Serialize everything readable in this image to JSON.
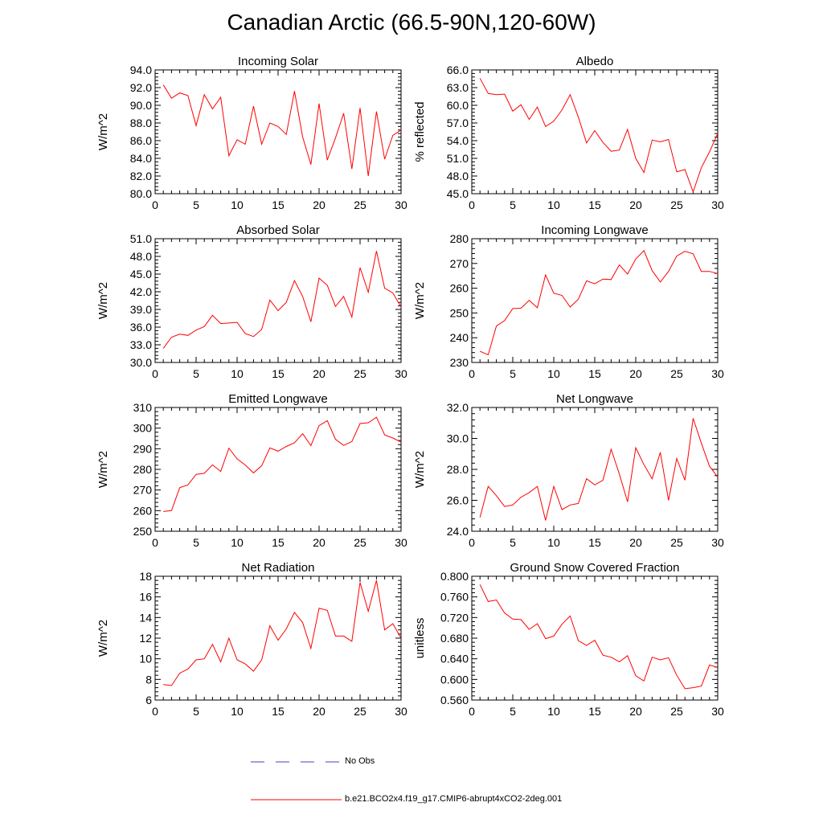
{
  "page": {
    "title": "Canadian Arctic (66.5-90N,120-60W)"
  },
  "legend": {
    "items": [
      {
        "label": "No Obs",
        "color": "#4040c0",
        "style": "dashed"
      },
      {
        "label": "b.e21.BCO2x4.f19_g17.CMIP6-abrupt4xCO2-2deg.001",
        "color": "#ff0000",
        "style": "solid"
      }
    ]
  },
  "chart_data": [
    {
      "type": "line",
      "title": "Incoming Solar",
      "ylabel": "W/m^2",
      "xlim": [
        0,
        30
      ],
      "ylim": [
        80,
        94
      ],
      "xticks": [
        0,
        5,
        10,
        15,
        20,
        25,
        30
      ],
      "xtick_labels": [
        "0",
        "5",
        "10",
        "15",
        "20",
        "25",
        "30"
      ],
      "yticks": [
        80,
        82,
        84,
        86,
        88,
        90,
        92,
        94
      ],
      "ytick_labels": [
        "80.0",
        "82.0",
        "84.0",
        "86.0",
        "88.0",
        "90.0",
        "92.0",
        "94.0"
      ],
      "series": [
        {
          "name": "b.e21.BCO2x4.f19_g17.CMIP6-abrupt4xCO2-2deg.001",
          "color": "#ff0000",
          "x": [
            1,
            2,
            3,
            4,
            5,
            6,
            7,
            8,
            9,
            10,
            11,
            12,
            13,
            14,
            15,
            16,
            17,
            18,
            19,
            20,
            21,
            22,
            23,
            24,
            25,
            26,
            27,
            28,
            29,
            30
          ],
          "values": [
            92.3,
            90.8,
            91.4,
            91.1,
            87.7,
            91.2,
            89.6,
            90.9,
            84.3,
            86.1,
            85.6,
            89.9,
            85.6,
            88.0,
            87.6,
            86.7,
            91.6,
            86.4,
            83.3,
            90.2,
            83.8,
            86.3,
            89.1,
            82.8,
            89.7,
            82.0,
            89.3,
            83.9,
            86.6,
            87.2
          ]
        }
      ]
    },
    {
      "type": "line",
      "title": "Albedo",
      "ylabel": "% reflected",
      "xlim": [
        0,
        30
      ],
      "ylim": [
        45,
        66
      ],
      "xticks": [
        0,
        5,
        10,
        15,
        20,
        25,
        30
      ],
      "xtick_labels": [
        "0",
        "5",
        "10",
        "15",
        "20",
        "25",
        "30"
      ],
      "yticks": [
        45,
        48,
        51,
        54,
        57,
        60,
        63,
        66
      ],
      "ytick_labels": [
        "45.0",
        "48.0",
        "51.0",
        "54.0",
        "57.0",
        "60.0",
        "63.0",
        "66.0"
      ],
      "series": [
        {
          "name": "b.e21.BCO2x4.f19_g17.CMIP6-abrupt4xCO2-2deg.001",
          "color": "#ff0000",
          "x": [
            1,
            2,
            3,
            4,
            5,
            6,
            7,
            8,
            9,
            10,
            11,
            12,
            13,
            14,
            15,
            16,
            17,
            18,
            19,
            20,
            21,
            22,
            23,
            24,
            25,
            26,
            27,
            28,
            29,
            30
          ],
          "values": [
            64.6,
            62.0,
            61.8,
            61.9,
            59.0,
            60.1,
            57.6,
            59.7,
            56.4,
            57.3,
            59.2,
            61.8,
            58.0,
            53.6,
            55.7,
            53.7,
            52.2,
            52.4,
            55.9,
            51.0,
            48.6,
            54.1,
            53.8,
            54.2,
            48.7,
            49.1,
            45.3,
            49.4,
            52.1,
            55.2
          ]
        }
      ]
    },
    {
      "type": "line",
      "title": "Absorbed Solar",
      "ylabel": "W/m^2",
      "xlim": [
        0,
        30
      ],
      "ylim": [
        30,
        51
      ],
      "xticks": [
        0,
        5,
        10,
        15,
        20,
        25,
        30
      ],
      "xtick_labels": [
        "0",
        "5",
        "10",
        "15",
        "20",
        "25",
        "30"
      ],
      "yticks": [
        30,
        33,
        36,
        39,
        42,
        45,
        48,
        51
      ],
      "ytick_labels": [
        "30.0",
        "33.0",
        "36.0",
        "39.0",
        "42.0",
        "45.0",
        "48.0",
        "51.0"
      ],
      "series": [
        {
          "name": "b.e21.BCO2x4.f19_g17.CMIP6-abrupt4xCO2-2deg.001",
          "color": "#ff0000",
          "x": [
            1,
            2,
            3,
            4,
            5,
            6,
            7,
            8,
            9,
            10,
            11,
            12,
            13,
            14,
            15,
            16,
            17,
            18,
            19,
            20,
            21,
            22,
            23,
            24,
            25,
            26,
            27,
            28,
            29,
            30
          ],
          "values": [
            32.4,
            34.3,
            34.8,
            34.6,
            35.5,
            36.1,
            38.0,
            36.6,
            36.7,
            36.8,
            34.9,
            34.4,
            35.6,
            40.6,
            38.8,
            40.2,
            43.9,
            41.2,
            36.9,
            44.3,
            43.1,
            39.5,
            41.2,
            37.7,
            46.1,
            41.9,
            48.9,
            42.6,
            41.8,
            39.4
          ]
        }
      ]
    },
    {
      "type": "line",
      "title": "Incoming Longwave",
      "ylabel": "W/m^2",
      "xlim": [
        0,
        30
      ],
      "ylim": [
        230,
        280
      ],
      "xticks": [
        0,
        5,
        10,
        15,
        20,
        25,
        30
      ],
      "xtick_labels": [
        "0",
        "5",
        "10",
        "15",
        "20",
        "25",
        "30"
      ],
      "yticks": [
        230,
        240,
        250,
        260,
        270,
        280
      ],
      "ytick_labels": [
        "230",
        "240",
        "250",
        "260",
        "270",
        "280"
      ],
      "series": [
        {
          "name": "b.e21.BCO2x4.f19_g17.CMIP6-abrupt4xCO2-2deg.001",
          "color": "#ff0000",
          "x": [
            1,
            2,
            3,
            4,
            5,
            6,
            7,
            8,
            9,
            10,
            11,
            12,
            13,
            14,
            15,
            16,
            17,
            18,
            19,
            20,
            21,
            22,
            23,
            24,
            25,
            26,
            27,
            28,
            29,
            30
          ],
          "values": [
            234.5,
            233.1,
            244.7,
            246.9,
            251.8,
            251.9,
            255.1,
            252.1,
            265.4,
            258.0,
            257.1,
            252.4,
            255.6,
            263.0,
            261.8,
            263.7,
            263.5,
            269.4,
            265.7,
            271.8,
            275.2,
            267.1,
            262.5,
            266.8,
            273.0,
            274.9,
            273.9,
            266.8,
            266.8,
            265.9
          ]
        }
      ]
    },
    {
      "type": "line",
      "title": "Emitted Longwave",
      "ylabel": "W/m^2",
      "xlim": [
        0,
        30
      ],
      "ylim": [
        250,
        310
      ],
      "xticks": [
        0,
        5,
        10,
        15,
        20,
        25,
        30
      ],
      "xtick_labels": [
        "0",
        "5",
        "10",
        "15",
        "20",
        "25",
        "30"
      ],
      "yticks": [
        250,
        260,
        270,
        280,
        290,
        300,
        310
      ],
      "ytick_labels": [
        "250",
        "260",
        "270",
        "280",
        "290",
        "300",
        "310"
      ],
      "series": [
        {
          "name": "b.e21.BCO2x4.f19_g17.CMIP6-abrupt4xCO2-2deg.001",
          "color": "#ff0000",
          "x": [
            1,
            2,
            3,
            4,
            5,
            6,
            7,
            8,
            9,
            10,
            11,
            12,
            13,
            14,
            15,
            16,
            17,
            18,
            19,
            20,
            21,
            22,
            23,
            24,
            25,
            26,
            27,
            28,
            29,
            30
          ],
          "values": [
            259.6,
            260.0,
            271.1,
            272.5,
            277.6,
            278.1,
            282.2,
            279.0,
            290.3,
            285.1,
            282.1,
            278.3,
            281.8,
            290.4,
            288.8,
            291.1,
            292.9,
            297.3,
            291.5,
            301.2,
            303.6,
            294.6,
            291.6,
            293.5,
            302.2,
            302.6,
            305.3,
            296.7,
            295.2,
            293.2
          ]
        }
      ]
    },
    {
      "type": "line",
      "title": "Net Longwave",
      "ylabel": "W/m^2",
      "xlim": [
        0,
        30
      ],
      "ylim": [
        24,
        32
      ],
      "xticks": [
        0,
        5,
        10,
        15,
        20,
        25,
        30
      ],
      "xtick_labels": [
        "0",
        "5",
        "10",
        "15",
        "20",
        "25",
        "30"
      ],
      "yticks": [
        24,
        26,
        28,
        30,
        32
      ],
      "ytick_labels": [
        "24.0",
        "26.0",
        "28.0",
        "30.0",
        "32.0"
      ],
      "series": [
        {
          "name": "b.e21.BCO2x4.f19_g17.CMIP6-abrupt4xCO2-2deg.001",
          "color": "#ff0000",
          "x": [
            1,
            2,
            3,
            4,
            5,
            6,
            7,
            8,
            9,
            10,
            11,
            12,
            13,
            14,
            15,
            16,
            17,
            18,
            19,
            20,
            21,
            22,
            23,
            24,
            25,
            26,
            27,
            28,
            29,
            30
          ],
          "values": [
            24.9,
            26.9,
            26.3,
            25.6,
            25.7,
            26.2,
            26.5,
            26.9,
            24.7,
            26.9,
            25.4,
            25.7,
            25.8,
            27.4,
            27.0,
            27.3,
            29.3,
            27.7,
            25.9,
            29.4,
            28.3,
            27.4,
            29.1,
            26.0,
            28.7,
            27.3,
            31.3,
            29.7,
            28.2,
            27.5
          ]
        }
      ]
    },
    {
      "type": "line",
      "title": "Net Radiation",
      "ylabel": "W/m^2",
      "xlim": [
        0,
        30
      ],
      "ylim": [
        6,
        18
      ],
      "xticks": [
        0,
        5,
        10,
        15,
        20,
        25,
        30
      ],
      "xtick_labels": [
        "0",
        "5",
        "10",
        "15",
        "20",
        "25",
        "30"
      ],
      "yticks": [
        6,
        8,
        10,
        12,
        14,
        16,
        18
      ],
      "ytick_labels": [
        "6",
        "8",
        "10",
        "12",
        "14",
        "16",
        "18"
      ],
      "series": [
        {
          "name": "b.e21.BCO2x4.f19_g17.CMIP6-abrupt4xCO2-2deg.001",
          "color": "#ff0000",
          "x": [
            1,
            2,
            3,
            4,
            5,
            6,
            7,
            8,
            9,
            10,
            11,
            12,
            13,
            14,
            15,
            16,
            17,
            18,
            19,
            20,
            21,
            22,
            23,
            24,
            25,
            26,
            27,
            28,
            29,
            30
          ],
          "values": [
            7.5,
            7.4,
            8.6,
            9.0,
            9.9,
            10.0,
            11.4,
            9.7,
            12.0,
            9.9,
            9.5,
            8.8,
            9.9,
            13.2,
            11.8,
            12.9,
            14.5,
            13.5,
            11.0,
            14.9,
            14.7,
            12.2,
            12.2,
            11.7,
            17.4,
            14.6,
            17.6,
            12.8,
            13.4,
            12.0
          ]
        }
      ]
    },
    {
      "type": "line",
      "title": "Ground Snow Covered Fraction",
      "ylabel": "unitless",
      "xlim": [
        0,
        30
      ],
      "ylim": [
        0.56,
        0.8
      ],
      "xticks": [
        0,
        5,
        10,
        15,
        20,
        25,
        30
      ],
      "xtick_labels": [
        "0",
        "5",
        "10",
        "15",
        "20",
        "25",
        "30"
      ],
      "yticks": [
        0.56,
        0.6,
        0.64,
        0.68,
        0.72,
        0.76,
        0.8
      ],
      "ytick_labels": [
        "0.560",
        "0.600",
        "0.640",
        "0.680",
        "0.720",
        "0.760",
        "0.800"
      ],
      "series": [
        {
          "name": "b.e21.BCO2x4.f19_g17.CMIP6-abrupt4xCO2-2deg.001",
          "color": "#ff0000",
          "x": [
            1,
            2,
            3,
            4,
            5,
            6,
            7,
            8,
            9,
            10,
            11,
            12,
            13,
            14,
            15,
            16,
            17,
            18,
            19,
            20,
            21,
            22,
            23,
            24,
            25,
            26,
            27,
            28,
            29,
            30
          ],
          "values": [
            0.784,
            0.751,
            0.754,
            0.729,
            0.717,
            0.716,
            0.697,
            0.708,
            0.679,
            0.684,
            0.707,
            0.723,
            0.675,
            0.666,
            0.676,
            0.647,
            0.643,
            0.634,
            0.646,
            0.607,
            0.597,
            0.643,
            0.638,
            0.642,
            0.608,
            0.582,
            0.584,
            0.587,
            0.628,
            0.623
          ]
        }
      ]
    }
  ]
}
